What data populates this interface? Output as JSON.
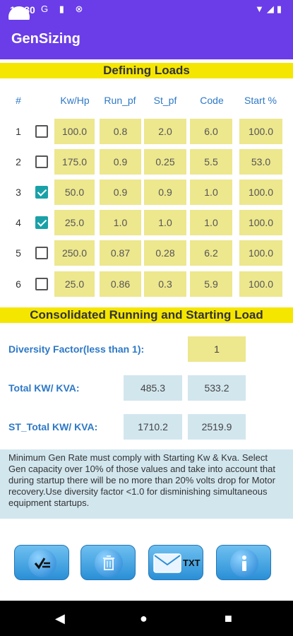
{
  "status": {
    "time": "10:30",
    "left_icons": "G ▮ ⊗",
    "right_icons": "▼◢▮"
  },
  "app": {
    "title": "GenSizing"
  },
  "section1": {
    "title": "Defining Loads"
  },
  "headers": [
    "#",
    "Kw/Hp",
    "Run_pf",
    "St_pf",
    "Code",
    "Start %"
  ],
  "rows": [
    {
      "num": "1",
      "checked": false,
      "kw": "100.0",
      "run_pf": "0.8",
      "st_pf": "2.0",
      "code": "6.0",
      "start": "100.0"
    },
    {
      "num": "2",
      "checked": false,
      "kw": "175.0",
      "run_pf": "0.9",
      "st_pf": "0.25",
      "code": "5.5",
      "start": "53.0"
    },
    {
      "num": "3",
      "checked": true,
      "kw": "50.0",
      "run_pf": "0.9",
      "st_pf": "0.9",
      "code": "1.0",
      "start": "100.0"
    },
    {
      "num": "4",
      "checked": true,
      "kw": "25.0",
      "run_pf": "1.0",
      "st_pf": "1.0",
      "code": "1.0",
      "start": "100.0"
    },
    {
      "num": "5",
      "checked": false,
      "kw": "250.0",
      "run_pf": "0.87",
      "st_pf": "0.28",
      "code": "6.2",
      "start": "100.0"
    },
    {
      "num": "6",
      "checked": false,
      "kw": "25.0",
      "run_pf": "0.86",
      "st_pf": "0.3",
      "code": "5.9",
      "start": "100.0"
    }
  ],
  "section2": {
    "title": "Consolidated Running and Starting Load"
  },
  "diversity": {
    "label": "Diversity Factor(less than 1):",
    "value": "1"
  },
  "total": {
    "label": "Total KW/ KVA:",
    "kw": "485.3",
    "kva": "533.2"
  },
  "st_total": {
    "label": "ST_Total KW/ KVA:",
    "kw": "1710.2",
    "kva": "2519.9"
  },
  "note": "Minimum Gen Rate must comply with Starting Kw & Kva. Select Gen capacity over 10% of those values and take into account that during startup there will be no more than 20% volts drop for Motor recovery.Use diversity factor <1.0 for disminishing simultaneous equipment startups.",
  "buttons": {
    "txt_label": "TXT"
  },
  "nav": {
    "back": "◀",
    "home": "●",
    "recents": "■"
  }
}
